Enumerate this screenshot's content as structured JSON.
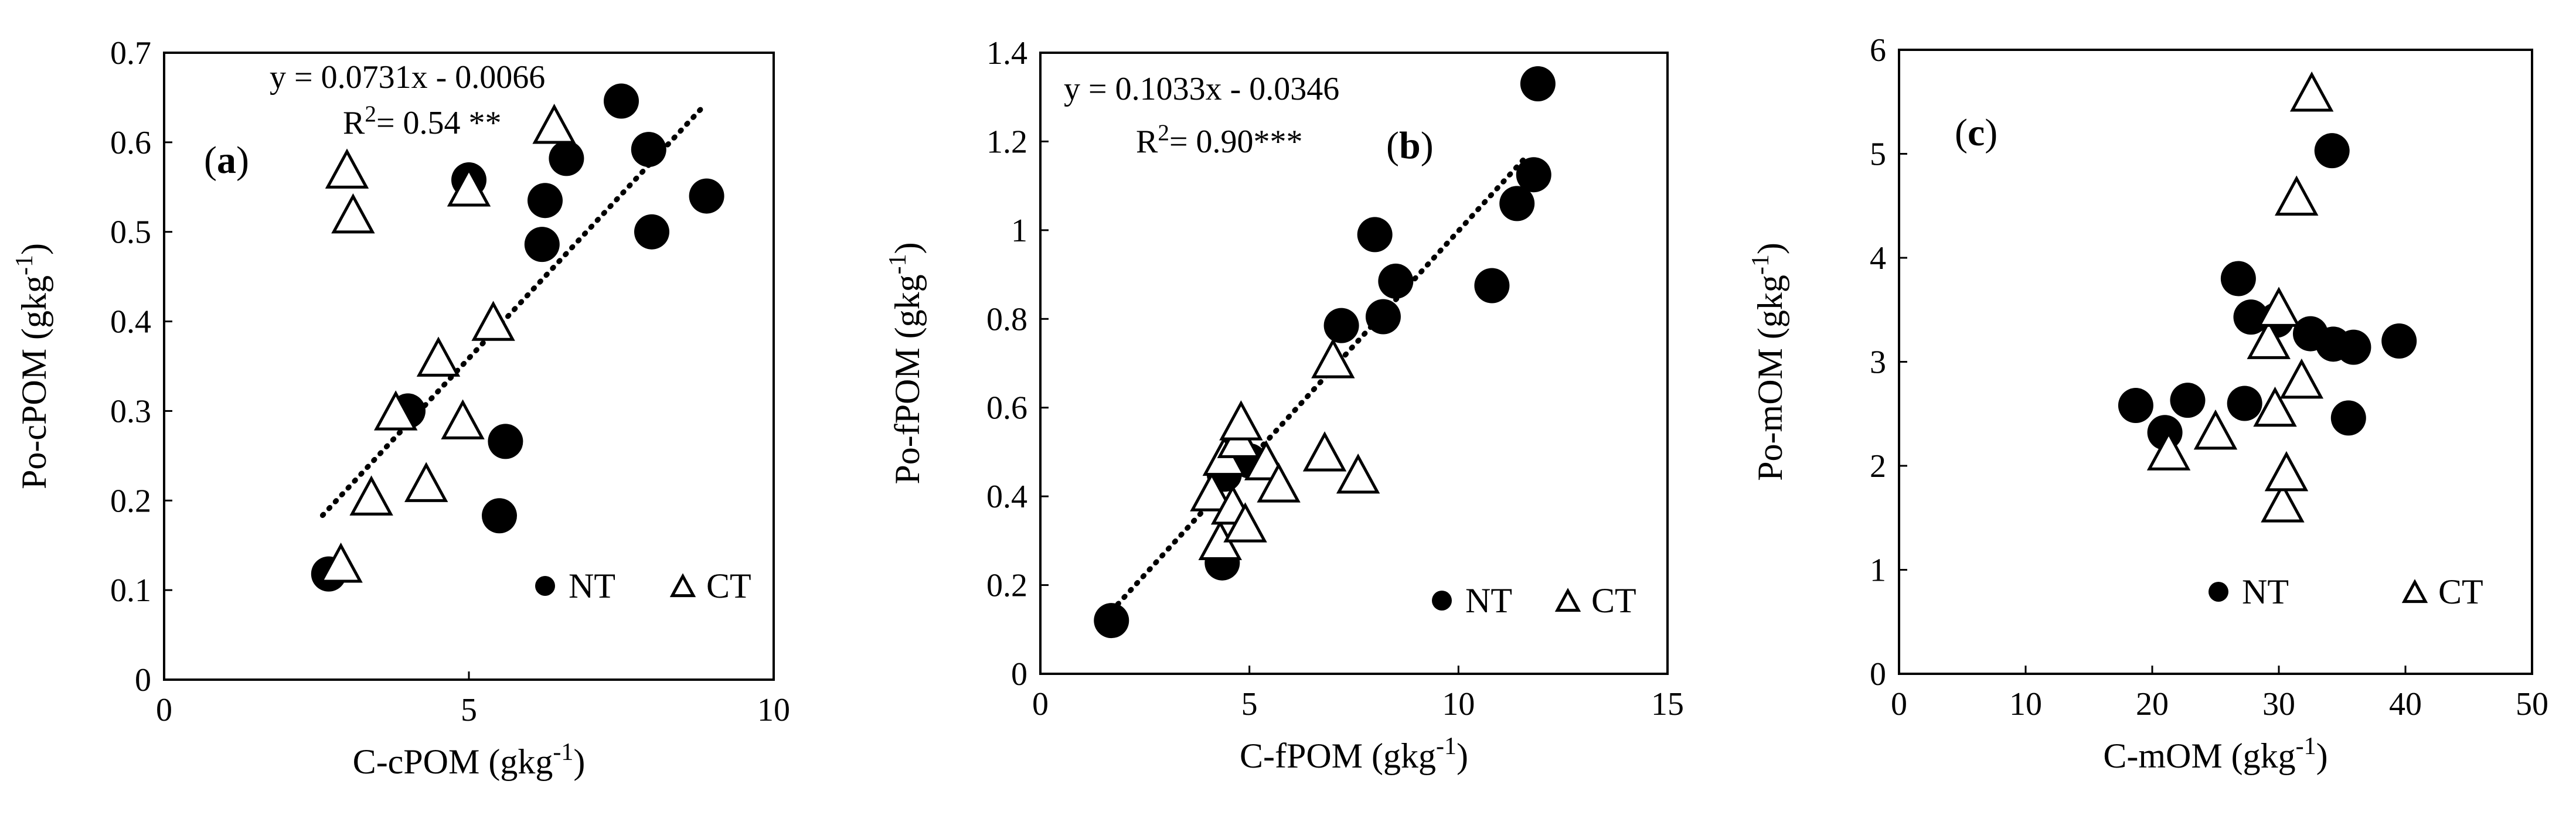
{
  "chart_data": [
    {
      "type": "scatter",
      "panel_label": "a",
      "xlabel": "C-cPOM (gkg",
      "ylabel": "Po-cPOM (gkg",
      "unit_sup": "-1",
      "unit_close": ")",
      "xlim": [
        0,
        10
      ],
      "ylim": [
        0,
        0.7
      ],
      "xticks": [
        0,
        5,
        10
      ],
      "yticks": [
        0,
        0.1,
        0.2,
        0.3,
        0.4,
        0.5,
        0.6,
        0.7
      ],
      "xtick_labels": [
        "0",
        "5",
        "10"
      ],
      "ytick_labels": [
        "0",
        "0.1",
        "0.2",
        "0.3",
        "0.4",
        "0.5",
        "0.6",
        "0.7"
      ],
      "equation": "y = 0.0731x - 0.0066",
      "r2_prefix": "R",
      "r2_sup": "2",
      "r2_value": "= 0.54 **",
      "trendline": {
        "slope": 0.0731,
        "intercept": -0.0066,
        "x_range": [
          2.6,
          8.8
        ]
      },
      "series": [
        {
          "name": "NT",
          "marker": "circle",
          "points": [
            [
              2.7,
              0.118
            ],
            [
              4.0,
              0.3
            ],
            [
              5.0,
              0.558
            ],
            [
              5.5,
              0.183
            ],
            [
              5.6,
              0.266
            ],
            [
              6.2,
              0.486
            ],
            [
              6.25,
              0.535
            ],
            [
              6.6,
              0.582
            ],
            [
              7.5,
              0.646
            ],
            [
              7.95,
              0.592
            ],
            [
              8.0,
              0.5
            ],
            [
              8.9,
              0.54
            ]
          ]
        },
        {
          "name": "CT",
          "marker": "triangle",
          "points": [
            [
              2.9,
              0.125
            ],
            [
              3.0,
              0.565
            ],
            [
              3.1,
              0.515
            ],
            [
              3.4,
              0.2
            ],
            [
              3.8,
              0.295
            ],
            [
              4.3,
              0.215
            ],
            [
              4.5,
              0.355
            ],
            [
              4.9,
              0.285
            ],
            [
              5.0,
              0.545
            ],
            [
              5.4,
              0.395
            ],
            [
              6.4,
              0.615
            ]
          ]
        }
      ]
    },
    {
      "type": "scatter",
      "panel_label": "b",
      "xlabel": "C-fPOM (gkg",
      "ylabel": "Po-fPOM (gkg",
      "unit_sup": "-1",
      "unit_close": ")",
      "xlim": [
        0,
        15
      ],
      "ylim": [
        0,
        1.4
      ],
      "xticks": [
        0,
        5,
        10,
        15
      ],
      "yticks": [
        0,
        0.2,
        0.4,
        0.6,
        0.8,
        1.0,
        1.2,
        1.4
      ],
      "xtick_labels": [
        "0",
        "5",
        "10",
        "15"
      ],
      "ytick_labels": [
        "0",
        "0.2",
        "0.4",
        "0.6",
        "0.8",
        "1",
        "1.2",
        "1.4"
      ],
      "equation": "y = 0.1033x - 0.0346",
      "r2_prefix": "R",
      "r2_sup": "2",
      "r2_value": "= 0.90***",
      "trendline": {
        "slope": 0.1033,
        "intercept": -0.0346,
        "x_range": [
          1.7,
          11.6
        ]
      },
      "series": [
        {
          "name": "NT",
          "marker": "circle",
          "points": [
            [
              1.7,
              0.12
            ],
            [
              4.35,
              0.25
            ],
            [
              4.4,
              0.45
            ],
            [
              5.0,
              0.48
            ],
            [
              7.2,
              0.785
            ],
            [
              8.0,
              0.99
            ],
            [
              8.2,
              0.805
            ],
            [
              8.5,
              0.885
            ],
            [
              10.8,
              0.875
            ],
            [
              11.4,
              1.06
            ],
            [
              11.8,
              1.125
            ],
            [
              11.9,
              1.33
            ]
          ]
        },
        {
          "name": "CT",
          "marker": "triangle",
          "points": [
            [
              4.1,
              0.4
            ],
            [
              4.3,
              0.29
            ],
            [
              4.4,
              0.48
            ],
            [
              4.6,
              0.37
            ],
            [
              4.75,
              0.52
            ],
            [
              4.8,
              0.56
            ],
            [
              4.9,
              0.33
            ],
            [
              5.4,
              0.47
            ],
            [
              5.7,
              0.42
            ],
            [
              6.8,
              0.49
            ],
            [
              7.0,
              0.7
            ],
            [
              7.6,
              0.44
            ]
          ]
        }
      ]
    },
    {
      "type": "scatter",
      "panel_label": "c",
      "xlabel": "C-mOM (gkg",
      "ylabel": "Po-mOM (gkg",
      "unit_sup": "-1",
      "unit_close": ")",
      "xlim": [
        0,
        50
      ],
      "ylim": [
        0,
        6
      ],
      "xticks": [
        0,
        10,
        20,
        30,
        40,
        50
      ],
      "yticks": [
        0,
        1,
        2,
        3,
        4,
        5,
        6
      ],
      "xtick_labels": [
        "0",
        "10",
        "20",
        "30",
        "40",
        "50"
      ],
      "ytick_labels": [
        "0",
        "1",
        "2",
        "3",
        "4",
        "5",
        "6"
      ],
      "series": [
        {
          "name": "NT",
          "marker": "circle",
          "points": [
            [
              18.7,
              2.58
            ],
            [
              21.0,
              2.32
            ],
            [
              22.8,
              2.63
            ],
            [
              26.8,
              3.8
            ],
            [
              27.3,
              2.6
            ],
            [
              27.8,
              3.43
            ],
            [
              29.8,
              3.4
            ],
            [
              32.5,
              3.27
            ],
            [
              34.2,
              5.03
            ],
            [
              34.3,
              3.17
            ],
            [
              35.5,
              2.46
            ],
            [
              35.9,
              3.14
            ],
            [
              39.5,
              3.2
            ]
          ]
        },
        {
          "name": "CT",
          "marker": "triangle",
          "points": [
            [
              21.3,
              2.1
            ],
            [
              25.0,
              2.3
            ],
            [
              29.2,
              3.17
            ],
            [
              29.7,
              2.52
            ],
            [
              30.0,
              3.48
            ],
            [
              30.3,
              1.6
            ],
            [
              30.6,
              1.9
            ],
            [
              31.4,
              4.55
            ],
            [
              31.8,
              2.79
            ],
            [
              32.6,
              5.55
            ]
          ]
        }
      ]
    }
  ]
}
